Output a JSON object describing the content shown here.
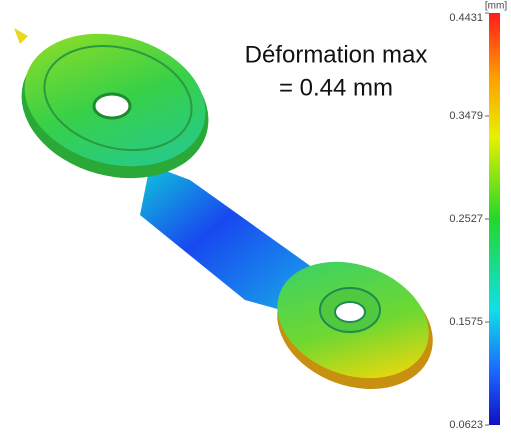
{
  "annotation": [
    "Déformation max",
    "= 0.44 mm"
  ],
  "colorbar": {
    "unit": "[mm]",
    "ticks": [
      0.4431,
      0.3479,
      0.2527,
      0.1575,
      0.0623
    ]
  }
}
